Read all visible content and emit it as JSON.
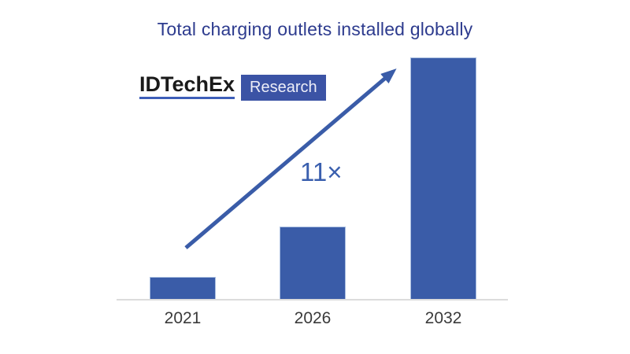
{
  "header": {
    "title": "Total charging outlets installed globally"
  },
  "logo": {
    "brand": "IDTechEx",
    "division": "Research"
  },
  "annotation": {
    "growth_multiplier": "11×"
  },
  "chart_data": {
    "type": "bar",
    "title": "Total charging outlets installed globally",
    "categories": [
      "2021",
      "2026",
      "2032"
    ],
    "values": [
      1,
      3.3,
      11
    ],
    "value_scale": "relative units estimated from bar heights (2021 = 1); no numeric axis shown",
    "xlabel": "",
    "ylabel": "",
    "ylim": [
      0,
      11.2
    ],
    "grid": false,
    "legend": false,
    "annotations": [
      "11× growth indicated by diagonal arrow rising from the 2021 bar toward the 2032 bar"
    ]
  },
  "colors": {
    "bar_fill": "#3A5CA8",
    "bar_border": "#A9BEE0",
    "arrow": "#3A5CA8",
    "growth_label": "#3A5FAE",
    "title_text": "#2D3B8E",
    "axis_line": "#DCDCDC",
    "tick_label": "#3A3A3A",
    "logo_text": "#1A1A1A",
    "logo_underline": "#3D5EB8",
    "research_badge_bg": "#3B53A5",
    "research_badge_text": "#EDEEF8"
  }
}
